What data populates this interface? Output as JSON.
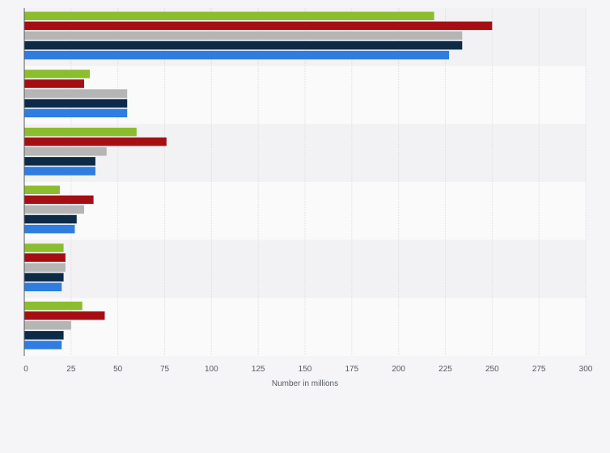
{
  "chart_data": {
    "type": "bar",
    "orientation": "horizontal",
    "title": "",
    "xlabel": "Number in millions",
    "ylabel": "",
    "xlim": [
      0,
      300
    ],
    "x_ticks": [
      0,
      25,
      50,
      75,
      100,
      125,
      150,
      175,
      200,
      225,
      250,
      275,
      300
    ],
    "grid": true,
    "legend": "none",
    "categories": [
      "",
      "",
      "",
      "",
      "",
      ""
    ],
    "series": [
      {
        "color": "#8cbd2f",
        "values": [
          219,
          35,
          60,
          19,
          21,
          31
        ]
      },
      {
        "color": "#a50f14",
        "values": [
          250,
          32,
          76,
          37,
          22,
          43
        ]
      },
      {
        "color": "#b5b5b5",
        "values": [
          234,
          55,
          44,
          32,
          22,
          25
        ]
      },
      {
        "color": "#0d2a47",
        "values": [
          234,
          55,
          38,
          28,
          21,
          21
        ]
      },
      {
        "color": "#2f7de0",
        "values": [
          227,
          55,
          38,
          27,
          20,
          20
        ]
      }
    ]
  }
}
